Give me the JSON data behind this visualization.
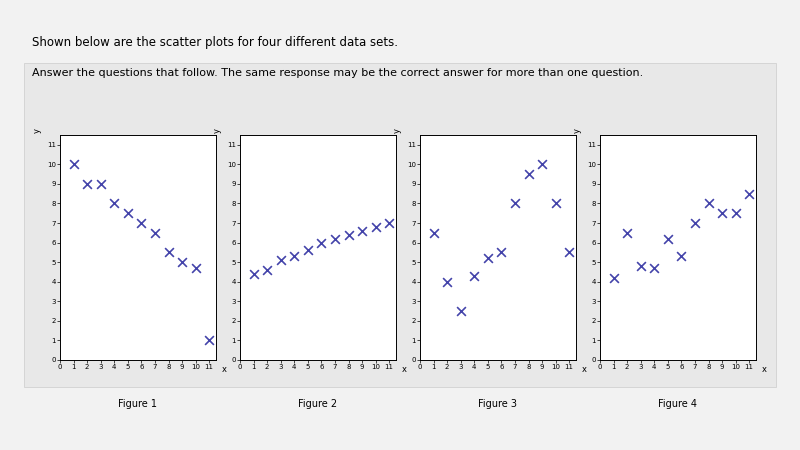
{
  "figures": [
    {
      "title": "Figure 1",
      "x": [
        1,
        2,
        3,
        4,
        5,
        6,
        7,
        8,
        9,
        10,
        11
      ],
      "y": [
        10,
        9,
        9,
        8,
        7.5,
        7,
        6.5,
        5.5,
        5,
        4.7,
        1
      ],
      "xlabel": "x",
      "ylabel": "y"
    },
    {
      "title": "Figure 2",
      "x": [
        1,
        2,
        3,
        4,
        5,
        6,
        7,
        8,
        9,
        10,
        11
      ],
      "y": [
        4.4,
        4.6,
        5.1,
        5.3,
        5.6,
        6.0,
        6.2,
        6.4,
        6.6,
        6.8,
        7.0
      ],
      "xlabel": "x",
      "ylabel": "y"
    },
    {
      "title": "Figure 3",
      "x": [
        1,
        2,
        3,
        4,
        5,
        6,
        7,
        8,
        9,
        10,
        11
      ],
      "y": [
        6.5,
        4.0,
        2.5,
        4.3,
        5.2,
        5.5,
        8.0,
        9.5,
        10.0,
        8.0,
        5.5
      ],
      "xlabel": "x",
      "ylabel": "y"
    },
    {
      "title": "Figure 4",
      "x": [
        1,
        2,
        3,
        4,
        5,
        6,
        7,
        8,
        9,
        10,
        11
      ],
      "y": [
        4.2,
        6.5,
        4.8,
        4.7,
        6.2,
        5.3,
        7.0,
        8.0,
        7.5,
        7.5,
        8.5
      ],
      "xlabel": "x",
      "ylabel": "y"
    }
  ],
  "marker_color": "#4444aa",
  "marker": "x",
  "marker_size": 5,
  "marker_lw": 1.2,
  "xlim": [
    0,
    11.5
  ],
  "ylim": [
    0,
    11.5
  ],
  "xticks": [
    0,
    1,
    2,
    3,
    4,
    5,
    6,
    7,
    8,
    9,
    10,
    11
  ],
  "yticks": [
    0,
    1,
    2,
    3,
    4,
    5,
    6,
    7,
    8,
    9,
    10,
    11
  ],
  "tick_fontsize": 5,
  "label_fontsize": 6,
  "title_fontsize": 7,
  "bg_color": "#f2f2f2",
  "plot_bg_color": "#ffffff",
  "header_text": "Shown below are the scatter plots for four different data sets.",
  "subheader_text": "Answer the questions that follow. The same response may be the correct answer for more than one question."
}
